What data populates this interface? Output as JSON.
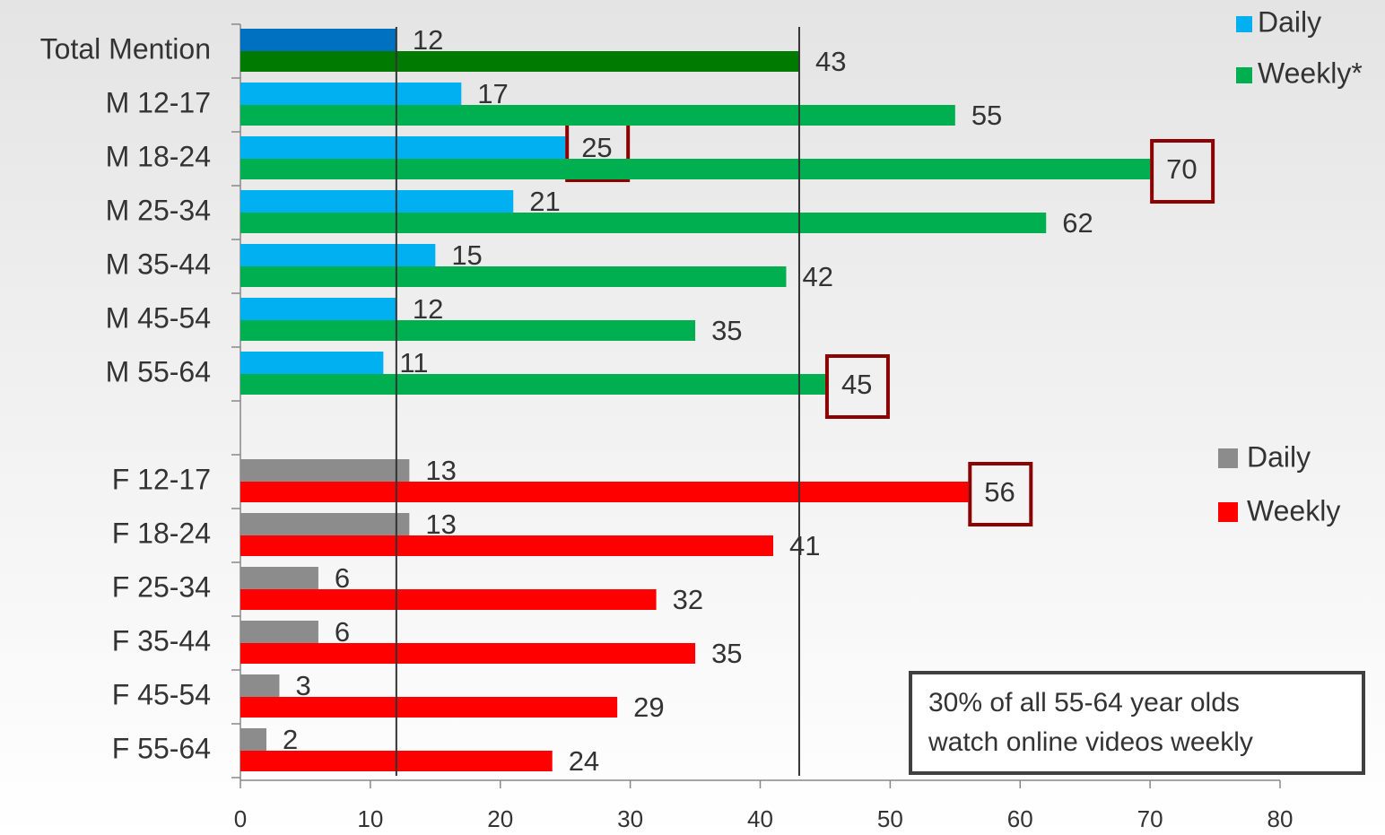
{
  "chart_data": {
    "type": "grouped-hbar",
    "categories": [
      "Total Mention",
      "M 12-17",
      "M 18-24",
      "M 25-34",
      "M 35-44",
      "M 45-54",
      "M 55-64",
      null,
      "F 12-17",
      "F 18-24",
      "F 25-34",
      "F 35-44",
      "F 45-54",
      "F 55-64"
    ],
    "series": [
      {
        "name": "Daily",
        "color": "#00b0f0",
        "colors": [
          "#0070c0",
          null,
          null,
          null,
          null,
          null,
          null,
          null,
          null,
          null,
          null,
          null,
          null,
          null
        ],
        "values": [
          12,
          17,
          25,
          21,
          15,
          12,
          11,
          null,
          null,
          null,
          null,
          null,
          null,
          null
        ]
      },
      {
        "name": "Weekly*",
        "color": "#00b050",
        "colors": [
          "#007a00",
          null,
          null,
          null,
          null,
          null,
          null,
          null,
          null,
          null,
          null,
          null,
          null,
          null
        ],
        "values": [
          43,
          55,
          70,
          62,
          42,
          35,
          45,
          null,
          null,
          null,
          null,
          null,
          null,
          null
        ]
      },
      {
        "name": "Daily",
        "color": "#8c8c8c",
        "values": [
          null,
          null,
          null,
          null,
          null,
          null,
          null,
          null,
          13,
          13,
          6,
          6,
          3,
          2
        ]
      },
      {
        "name": "Weekly",
        "color": "#ff0000",
        "values": [
          null,
          null,
          null,
          null,
          null,
          null,
          null,
          null,
          56,
          41,
          32,
          35,
          29,
          24
        ]
      }
    ],
    "xlim": [
      0,
      80
    ],
    "xticks": [
      0,
      10,
      20,
      30,
      40,
      50,
      60,
      70,
      80
    ],
    "reference_lines": [
      12,
      43
    ],
    "highlight": [
      {
        "series": 0,
        "index": 2
      },
      {
        "series": 1,
        "index": 2
      },
      {
        "series": 1,
        "index": 6
      },
      {
        "series": 3,
        "index": 8
      }
    ],
    "highlight_color": "#8b0000",
    "annotation": [
      "30% of all 55-64 year olds",
      "watch online videos weekly"
    ]
  }
}
